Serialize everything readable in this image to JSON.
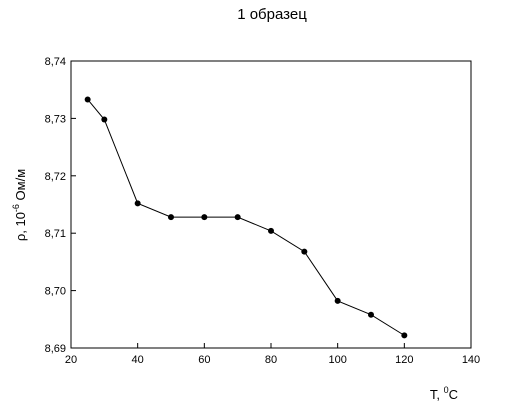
{
  "chart_data": {
    "type": "line",
    "title": "1 образец",
    "ylabel": {
      "prefix": "ρ, 10",
      "exponent": "-6",
      "suffix": " Ом/м"
    },
    "xlabel": {
      "prefix": "T, ",
      "exponent": "0",
      "suffix": "C"
    },
    "xlim": [
      20,
      140
    ],
    "ylim": [
      8.69,
      8.74
    ],
    "x_ticks": [
      20,
      40,
      60,
      80,
      100,
      120,
      140
    ],
    "y_ticks": [
      8.69,
      8.7,
      8.71,
      8.72,
      8.73,
      8.74
    ],
    "y_tick_labels": [
      "8,69",
      "8,70",
      "8,71",
      "8,72",
      "8,73",
      "8,74"
    ],
    "grid": false,
    "marker": "circle",
    "series_color": "#000000",
    "series": [
      {
        "x": [
          25,
          30,
          40,
          50,
          60,
          70,
          80,
          90,
          100,
          110,
          120
        ],
        "y": [
          8.7333,
          8.7298,
          8.7152,
          8.7128,
          8.7128,
          8.7128,
          8.7104,
          8.7068,
          8.6982,
          8.6958,
          8.6922
        ]
      }
    ]
  }
}
